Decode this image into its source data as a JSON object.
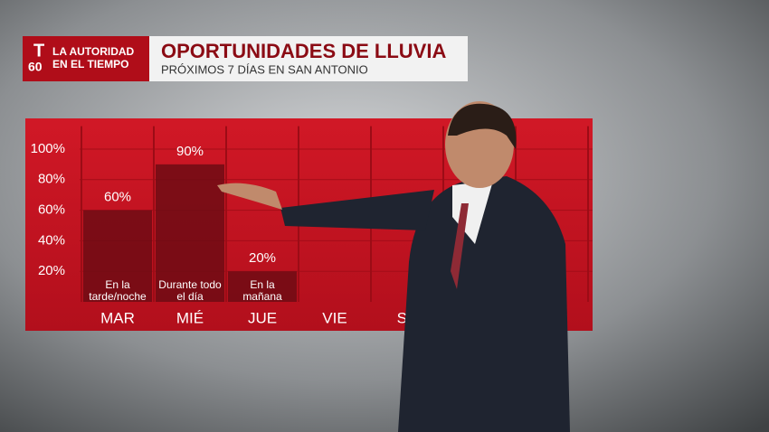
{
  "header": {
    "logo_letter": "T",
    "logo_number": "60",
    "tagline": [
      "LA AUTORIDAD",
      "EN EL TIEMPO"
    ]
  },
  "chart_data": {
    "type": "bar",
    "title": "OPORTUNIDADES DE LLUVIA",
    "subtitle": "PRÓXIMOS 7 DÍAS EN SAN ANTONIO",
    "categories": [
      "MAR",
      "MIÉ",
      "JUE",
      "VIE",
      "SÁ"
    ],
    "values": [
      60,
      90,
      20,
      null,
      null
    ],
    "value_labels": [
      "60%",
      "90%",
      "20%",
      null,
      null
    ],
    "annotations": [
      [
        "En la",
        "tarde/noche"
      ],
      [
        "Durante todo",
        "el día"
      ],
      [
        "En la",
        "mañana"
      ]
    ],
    "color": "#6e0c14",
    "ylim": [
      0,
      115
    ],
    "yticks": [
      {
        "value": 20,
        "label": "20%"
      },
      {
        "value": 40,
        "label": "40%"
      },
      {
        "value": 60,
        "label": "60%"
      },
      {
        "value": 80,
        "label": "80%"
      },
      {
        "value": 100,
        "label": "100%"
      }
    ],
    "grid": true
  }
}
